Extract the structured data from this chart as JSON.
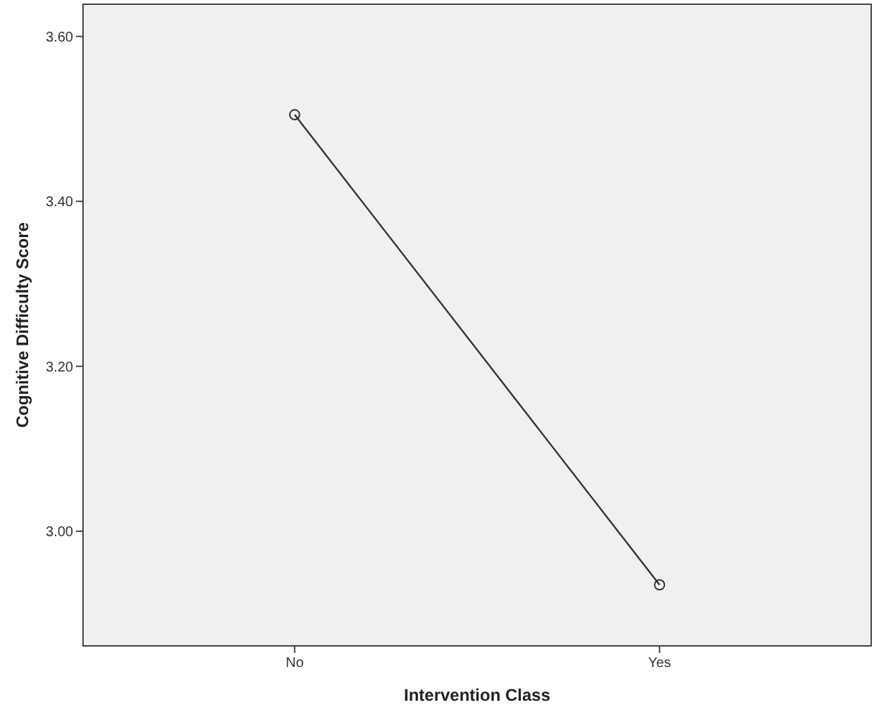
{
  "chart_data": {
    "type": "line",
    "xlabel": "Intervention Class",
    "ylabel": "Cognitive Difficulty Score",
    "categories": [
      "No",
      "Yes"
    ],
    "series": [
      {
        "color": "#333333",
        "values": [
          3.505,
          2.935
        ]
      }
    ],
    "ylim": [
      2.861,
      3.639
    ],
    "yticks": [
      {
        "value": 3.0,
        "label": "3.00"
      },
      {
        "value": 3.2,
        "label": "3.20"
      },
      {
        "value": 3.4,
        "label": "3.40"
      },
      {
        "value": 3.6,
        "label": "3.60"
      }
    ],
    "marker": "circle",
    "line_style": "solid"
  }
}
